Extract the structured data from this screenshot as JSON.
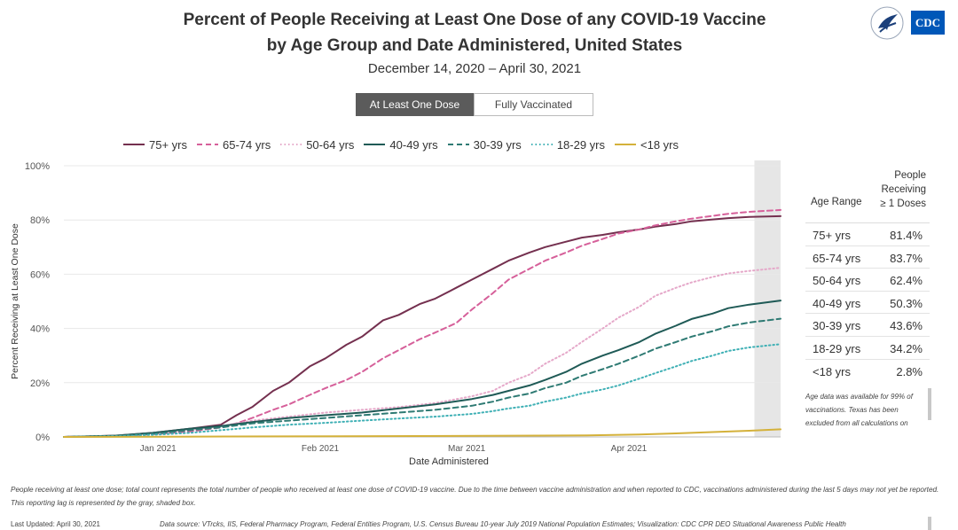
{
  "header": {
    "title_line1": "Percent of People Receiving at Least One Dose of any COVID-19 Vaccine",
    "title_line2": "by Age Group and Date Administered, United States",
    "subtitle": "December 14, 2020 – April 30, 2021",
    "logo_text": "CDC"
  },
  "tabs": [
    {
      "label": "At Least One Dose",
      "active": true
    },
    {
      "label": "Fully Vaccinated",
      "active": false
    }
  ],
  "table": {
    "col1": "Age Range",
    "col2_line1": "People",
    "col2_line2": "Receiving",
    "col2_line3": "≥ 1 Doses",
    "rows": [
      {
        "age": "75+ yrs",
        "value": "81.4%"
      },
      {
        "age": "65-74 yrs",
        "value": "83.7%"
      },
      {
        "age": "50-64 yrs",
        "value": "62.4%"
      },
      {
        "age": "40-49 yrs",
        "value": "50.3%"
      },
      {
        "age": "30-39 yrs",
        "value": "43.6%"
      },
      {
        "age": "18-29 yrs",
        "value": "34.2%"
      },
      {
        "age": "<18 yrs",
        "value": "2.8%"
      }
    ],
    "note": "Age data was available for 99% of vaccinations. Texas has been excluded from all calculations on"
  },
  "footer": {
    "footnote": "People receiving at least one dose; total count represents the total number of people who received at least one dose of COVID-19 vaccine. Due to the time between vaccine administration and when reported to CDC, vaccinations administered during the last 5 days may not yet be reported. This reporting lag is represented by the gray, shaded box.",
    "last_updated": "Last Updated: April 30, 2021",
    "source": "Data source: VTrcks, IIS, Federal Pharmacy Program, Federal Entities Program, U.S. Census Bureau 10-year July 2019 National Population Estimates; Visualization: CDC CPR DEO Situational Awareness Public Health"
  },
  "chart_data": {
    "type": "line",
    "title": "Percent of People Receiving at Least One Dose of any COVID-19 Vaccine by Age Group and Date Administered, United States",
    "xlabel": "Date Administered",
    "ylabel": "Percent Receiving at Least One Dose",
    "ylim": [
      0,
      100
    ],
    "xlim": [
      0,
      137
    ],
    "y_ticks": [
      0,
      20,
      40,
      60,
      80,
      100
    ],
    "y_tick_labels": [
      "0%",
      "20%",
      "40%",
      "60%",
      "80%",
      "100%"
    ],
    "x_ticks": [
      18,
      49,
      77,
      108
    ],
    "x_tick_labels": [
      "Jan 2021",
      "Feb 2021",
      "Mar 2021",
      "Apr 2021"
    ],
    "x_unit": "days since Dec 14, 2020",
    "shaded_region": [
      132,
      137
    ],
    "legend_position": "top",
    "series": [
      {
        "name": "75+ yrs",
        "color": "#74304f",
        "dash": "solid",
        "x": [
          0,
          10,
          17,
          24,
          30,
          33,
          36,
          40,
          43,
          47,
          50,
          54,
          57,
          61,
          64,
          68,
          71,
          75,
          78,
          82,
          85,
          89,
          92,
          96,
          99,
          103,
          106,
          110,
          113,
          117,
          120,
          124,
          127,
          131,
          137
        ],
        "y": [
          0,
          0.5,
          1.5,
          3,
          4.5,
          8,
          11,
          17,
          20,
          26,
          29,
          34,
          37,
          43,
          45,
          49,
          51,
          55,
          58,
          62,
          65,
          68,
          70,
          72,
          73.5,
          74.5,
          75.5,
          76.5,
          77.5,
          78.5,
          79.5,
          80.2,
          80.7,
          81.1,
          81.4
        ]
      },
      {
        "name": "65-74 yrs",
        "color": "#d6609a",
        "dash": "dashed",
        "x": [
          0,
          10,
          17,
          24,
          30,
          33,
          36,
          40,
          43,
          47,
          50,
          54,
          57,
          61,
          64,
          68,
          71,
          75,
          78,
          82,
          85,
          89,
          92,
          96,
          99,
          103,
          106,
          110,
          113,
          117,
          120,
          124,
          127,
          131,
          137
        ],
        "y": [
          0,
          0.3,
          1,
          2,
          3.5,
          5,
          7,
          10,
          12,
          15.5,
          18,
          21,
          24,
          29,
          32,
          36,
          38.5,
          42,
          47,
          53,
          58,
          62,
          65,
          68,
          70.5,
          73,
          75,
          76.5,
          78,
          79.5,
          80.5,
          81.5,
          82.3,
          83,
          83.7
        ]
      },
      {
        "name": "50-64 yrs",
        "color": "#e5a8c9",
        "dash": "dotted",
        "x": [
          0,
          10,
          17,
          24,
          30,
          36,
          43,
          50,
          57,
          64,
          71,
          78,
          82,
          85,
          89,
          92,
          96,
          99,
          103,
          106,
          110,
          113,
          117,
          120,
          124,
          127,
          131,
          137
        ],
        "y": [
          0,
          0.3,
          1,
          2.5,
          4,
          6,
          7.5,
          9,
          10,
          11,
          12.5,
          15,
          17,
          20,
          23,
          27,
          31,
          35,
          40,
          44,
          48,
          52,
          55,
          57,
          59,
          60.3,
          61.2,
          62.4
        ]
      },
      {
        "name": "40-49 yrs",
        "color": "#1f5a56",
        "dash": "solid",
        "x": [
          0,
          10,
          17,
          24,
          30,
          36,
          43,
          50,
          57,
          64,
          71,
          78,
          82,
          85,
          89,
          92,
          96,
          99,
          103,
          106,
          110,
          113,
          117,
          120,
          124,
          127,
          131,
          137
        ],
        "y": [
          0,
          0.5,
          1.5,
          3,
          4,
          5.5,
          7,
          8,
          9,
          10.5,
          12,
          14,
          15.5,
          17,
          19,
          21,
          24,
          27,
          30,
          32,
          35,
          38,
          41,
          43.5,
          45.5,
          47.5,
          48.8,
          50.3
        ]
      },
      {
        "name": "30-39 yrs",
        "color": "#2e7a73",
        "dash": "dashed",
        "x": [
          0,
          10,
          17,
          24,
          30,
          36,
          43,
          50,
          57,
          64,
          71,
          78,
          82,
          85,
          89,
          92,
          96,
          99,
          103,
          106,
          110,
          113,
          117,
          120,
          124,
          127,
          131,
          137
        ],
        "y": [
          0,
          0.4,
          1.2,
          2.5,
          3.5,
          5,
          6,
          7,
          8,
          9,
          10,
          11.5,
          13,
          14.5,
          16,
          18,
          20,
          22.5,
          25,
          27,
          30,
          32.5,
          35,
          37,
          39,
          40.8,
          42.2,
          43.6
        ]
      },
      {
        "name": "18-29 yrs",
        "color": "#3fb0b5",
        "dash": "dotted",
        "x": [
          0,
          10,
          17,
          24,
          30,
          36,
          43,
          50,
          57,
          64,
          71,
          78,
          82,
          85,
          89,
          92,
          96,
          99,
          103,
          106,
          110,
          113,
          117,
          120,
          124,
          127,
          131,
          137
        ],
        "y": [
          0,
          0.3,
          0.8,
          1.5,
          2.5,
          3.5,
          4.5,
          5.2,
          6,
          6.8,
          7.5,
          8.5,
          9.5,
          10.5,
          11.5,
          13,
          14.5,
          16,
          17.5,
          19,
          21.5,
          23.5,
          26,
          28,
          30,
          31.7,
          33,
          34.2
        ]
      },
      {
        "name": "<18 yrs",
        "color": "#d4b13a",
        "dash": "solid",
        "x": [
          0,
          20,
          40,
          60,
          80,
          100,
          110,
          117,
          124,
          131,
          137
        ],
        "y": [
          0,
          0.1,
          0.2,
          0.3,
          0.4,
          0.6,
          0.9,
          1.3,
          1.8,
          2.3,
          2.8
        ]
      }
    ]
  }
}
